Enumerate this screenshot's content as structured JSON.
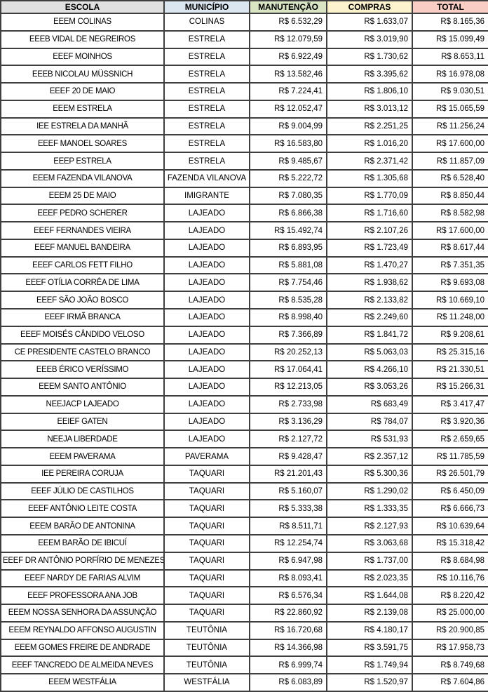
{
  "table": {
    "columns": [
      {
        "key": "school",
        "label": "ESCOLA",
        "header_bg": "#E0E0E0",
        "align": "center"
      },
      {
        "key": "municipality",
        "label": "MUNICÍPIO",
        "header_bg": "#DCE6F0",
        "align": "center"
      },
      {
        "key": "maintenance",
        "label": "MANUTENÇÃO",
        "header_bg": "#D9E4C5",
        "align": "right"
      },
      {
        "key": "purchases",
        "label": "COMPRAS",
        "header_bg": "#FDF2CE",
        "align": "right"
      },
      {
        "key": "total",
        "label": "TOTAL",
        "header_bg": "#F8CEC4",
        "align": "right"
      }
    ],
    "rows": [
      {
        "school": "EEEM COLINAS",
        "municipality": "COLINAS",
        "maintenance": "R$ 6.532,29",
        "purchases": "R$ 1.633,07",
        "total": "R$ 8.165,36"
      },
      {
        "school": "EEEB VIDAL DE NEGREIROS",
        "municipality": "ESTRELA",
        "maintenance": "R$ 12.079,59",
        "purchases": "R$ 3.019,90",
        "total": "R$ 15.099,49"
      },
      {
        "school": "EEEF MOINHOS",
        "municipality": "ESTRELA",
        "maintenance": "R$ 6.922,49",
        "purchases": "R$ 1.730,62",
        "total": "R$ 8.653,11"
      },
      {
        "school": "EEEB NICOLAU MÜSSNICH",
        "municipality": "ESTRELA",
        "maintenance": "R$ 13.582,46",
        "purchases": "R$ 3.395,62",
        "total": "R$ 16.978,08"
      },
      {
        "school": "EEEF 20 DE MAIO",
        "municipality": "ESTRELA",
        "maintenance": "R$ 7.224,41",
        "purchases": "R$ 1.806,10",
        "total": "R$ 9.030,51"
      },
      {
        "school": "EEEM ESTRELA",
        "municipality": "ESTRELA",
        "maintenance": "R$ 12.052,47",
        "purchases": "R$ 3.013,12",
        "total": "R$ 15.065,59"
      },
      {
        "school": "IEE ESTRELA DA MANHÃ",
        "municipality": "ESTRELA",
        "maintenance": "R$ 9.004,99",
        "purchases": "R$ 2.251,25",
        "total": "R$ 11.256,24"
      },
      {
        "school": "EEEF MANOEL SOARES",
        "municipality": "ESTRELA",
        "maintenance": "R$ 16.583,80",
        "purchases": "R$ 1.016,20",
        "total": "R$ 17.600,00"
      },
      {
        "school": "EEEP ESTRELA",
        "municipality": "ESTRELA",
        "maintenance": "R$ 9.485,67",
        "purchases": "R$ 2.371,42",
        "total": "R$ 11.857,09"
      },
      {
        "school": "EEEM FAZENDA VILANOVA",
        "municipality": "FAZENDA VILANOVA",
        "maintenance": "R$ 5.222,72",
        "purchases": "R$ 1.305,68",
        "total": "R$ 6.528,40"
      },
      {
        "school": "EEEM 25 DE MAIO",
        "municipality": "IMIGRANTE",
        "maintenance": "R$ 7.080,35",
        "purchases": "R$ 1.770,09",
        "total": "R$ 8.850,44"
      },
      {
        "school": "EEEF PEDRO SCHERER",
        "municipality": "LAJEADO",
        "maintenance": "R$ 6.866,38",
        "purchases": "R$ 1.716,60",
        "total": "R$ 8.582,98"
      },
      {
        "school": "EEEF FERNANDES VIEIRA",
        "municipality": "LAJEADO",
        "maintenance": "R$ 15.492,74",
        "purchases": "R$ 2.107,26",
        "total": "R$ 17.600,00"
      },
      {
        "school": "EEEF MANUEL BANDEIRA",
        "municipality": "LAJEADO",
        "maintenance": "R$ 6.893,95",
        "purchases": "R$ 1.723,49",
        "total": "R$ 8.617,44"
      },
      {
        "school": "EEEF CARLOS FETT FILHO",
        "municipality": "LAJEADO",
        "maintenance": "R$ 5.881,08",
        "purchases": "R$ 1.470,27",
        "total": "R$ 7.351,35"
      },
      {
        "school": "EEEF OTÍLIA CORRÊA DE LIMA",
        "municipality": "LAJEADO",
        "maintenance": "R$ 7.754,46",
        "purchases": "R$ 1.938,62",
        "total": "R$ 9.693,08"
      },
      {
        "school": "EEEF SÃO JOÃO BOSCO",
        "municipality": "LAJEADO",
        "maintenance": "R$ 8.535,28",
        "purchases": "R$ 2.133,82",
        "total": "R$ 10.669,10"
      },
      {
        "school": "EEEF IRMÃ BRANCA",
        "municipality": "LAJEADO",
        "maintenance": "R$ 8.998,40",
        "purchases": "R$ 2.249,60",
        "total": "R$ 11.248,00"
      },
      {
        "school": "EEEF MOISÉS CÂNDIDO VELOSO",
        "municipality": "LAJEADO",
        "maintenance": "R$ 7.366,89",
        "purchases": "R$ 1.841,72",
        "total": "R$ 9.208,61"
      },
      {
        "school": "CE PRESIDENTE CASTELO BRANCO",
        "municipality": "LAJEADO",
        "maintenance": "R$ 20.252,13",
        "purchases": "R$ 5.063,03",
        "total": "R$ 25.315,16"
      },
      {
        "school": "EEEB ÉRICO VERÍSSIMO",
        "municipality": "LAJEADO",
        "maintenance": "R$ 17.064,41",
        "purchases": "R$ 4.266,10",
        "total": "R$ 21.330,51"
      },
      {
        "school": "EEEM SANTO ANTÔNIO",
        "municipality": "LAJEADO",
        "maintenance": "R$ 12.213,05",
        "purchases": "R$ 3.053,26",
        "total": "R$ 15.266,31"
      },
      {
        "school": "NEEJACP LAJEADO",
        "municipality": "LAJEADO",
        "maintenance": "R$ 2.733,98",
        "purchases": "R$ 683,49",
        "total": "R$ 3.417,47"
      },
      {
        "school": "EEIEF GATEN",
        "municipality": "LAJEADO",
        "maintenance": "R$ 3.136,29",
        "purchases": "R$ 784,07",
        "total": "R$ 3.920,36"
      },
      {
        "school": "NEEJA LIBERDADE",
        "municipality": "LAJEADO",
        "maintenance": "R$ 2.127,72",
        "purchases": "R$ 531,93",
        "total": "R$ 2.659,65"
      },
      {
        "school": "EEEM PAVERAMA",
        "municipality": "PAVERAMA",
        "maintenance": "R$ 9.428,47",
        "purchases": "R$ 2.357,12",
        "total": "R$ 11.785,59"
      },
      {
        "school": "IEE PEREIRA CORUJA",
        "municipality": "TAQUARI",
        "maintenance": "R$ 21.201,43",
        "purchases": "R$ 5.300,36",
        "total": "R$ 26.501,79"
      },
      {
        "school": "EEEF JÚLIO DE CASTILHOS",
        "municipality": "TAQUARI",
        "maintenance": "R$ 5.160,07",
        "purchases": "R$ 1.290,02",
        "total": "R$ 6.450,09"
      },
      {
        "school": "EEEF ANTÔNIO LEITE COSTA",
        "municipality": "TAQUARI",
        "maintenance": "R$ 5.333,38",
        "purchases": "R$ 1.333,35",
        "total": "R$ 6.666,73"
      },
      {
        "school": "EEEM BARÃO DE ANTONINA",
        "municipality": "TAQUARI",
        "maintenance": "R$ 8.511,71",
        "purchases": "R$ 2.127,93",
        "total": "R$ 10.639,64"
      },
      {
        "school": "EEEM BARÃO DE IBICUÍ",
        "municipality": "TAQUARI",
        "maintenance": "R$ 12.254,74",
        "purchases": "R$ 3.063,68",
        "total": "R$ 15.318,42"
      },
      {
        "school": "EEEF DR ANTÔNIO PORFÍRIO DE MENEZES",
        "municipality": "TAQUARI",
        "maintenance": "R$ 6.947,98",
        "purchases": "R$ 1.737,00",
        "total": "R$ 8.684,98"
      },
      {
        "school": "EEEF NARDY DE FARIAS ALVIM",
        "municipality": "TAQUARI",
        "maintenance": "R$ 8.093,41",
        "purchases": "R$ 2.023,35",
        "total": "R$ 10.116,76"
      },
      {
        "school": "EEEF PROFESSORA ANA JOB",
        "municipality": "TAQUARI",
        "maintenance": "R$ 6.576,34",
        "purchases": "R$ 1.644,08",
        "total": "R$ 8.220,42"
      },
      {
        "school": "EEEM NOSSA SENHORA DA ASSUNÇÃO",
        "municipality": "TAQUARI",
        "maintenance": "R$ 22.860,92",
        "purchases": "R$ 2.139,08",
        "total": "R$ 25.000,00"
      },
      {
        "school": "EEEM REYNALDO AFFONSO AUGUSTIN",
        "municipality": "TEUTÔNIA",
        "maintenance": "R$ 16.720,68",
        "purchases": "R$ 4.180,17",
        "total": "R$ 20.900,85"
      },
      {
        "school": "EEEM GOMES FREIRE DE ANDRADE",
        "municipality": "TEUTÔNIA",
        "maintenance": "R$ 14.366,98",
        "purchases": "R$ 3.591,75",
        "total": "R$ 17.958,73"
      },
      {
        "school": "EEEF TANCREDO DE ALMEIDA NEVES",
        "municipality": "TEUTÔNIA",
        "maintenance": "R$ 6.999,74",
        "purchases": "R$ 1.749,94",
        "total": "R$ 8.749,68"
      },
      {
        "school": "EEEM WESTFÁLIA",
        "municipality": "WESTFÁLIA",
        "maintenance": "R$ 6.083,89",
        "purchases": "R$ 1.520,97",
        "total": "R$ 7.604,86"
      }
    ]
  },
  "colors": {
    "border": "#3F3F3F",
    "row_bg": "#FFFFFF",
    "text": "#000000"
  }
}
